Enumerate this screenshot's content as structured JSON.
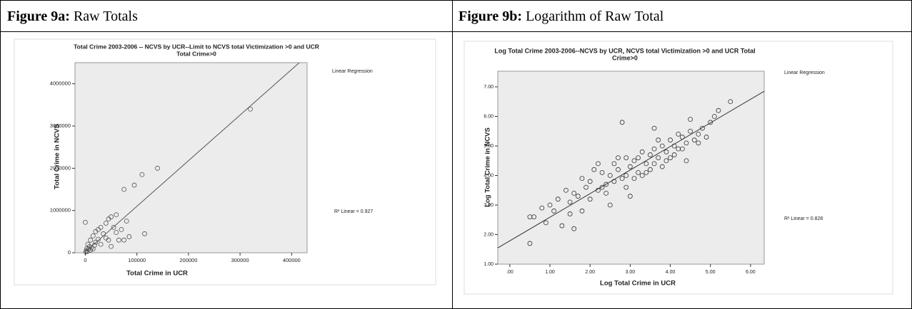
{
  "table": {
    "headers": [
      {
        "label": "Figure 9a:",
        "text": "Raw Totals"
      },
      {
        "label": "Figure 9b:",
        "text": "Logarithm of Raw Total"
      }
    ]
  },
  "chart_data": [
    {
      "type": "scatter",
      "title": [
        "Total Crime 2003-2006 -- NCVS by UCR--Limit to NCVS total Victimization >0 and UCR",
        "Total Crime>0"
      ],
      "x_label": "Total Crime in UCR",
      "y_label": "Total Crime in NCVS",
      "legend_title": "Linear Regression",
      "annotation": "R² Linear = 0.927",
      "xlim": [
        -20000,
        430000
      ],
      "ylim": [
        0,
        4500000
      ],
      "xticks": [
        0,
        100000,
        200000,
        300000,
        400000
      ],
      "yticks": [
        0,
        1000000,
        2000000,
        3000000,
        4000000
      ],
      "x": [
        320000,
        140000,
        110000,
        95000,
        75000,
        60000,
        50000,
        45000,
        40000,
        0,
        80000,
        70000,
        115000,
        60000,
        85000,
        75000,
        30000,
        25000,
        20000,
        35000,
        15000,
        10000,
        20000,
        5000,
        8000,
        3000,
        12000,
        18000,
        25000,
        40000,
        2000,
        6000,
        10000,
        15000,
        30000,
        45000,
        50000,
        1000,
        4000,
        55000,
        65000
      ],
      "y": [
        3400000,
        2000000,
        1850000,
        1600000,
        1500000,
        900000,
        850000,
        800000,
        700000,
        720000,
        750000,
        550000,
        450000,
        480000,
        380000,
        300000,
        600000,
        550000,
        500000,
        450000,
        400000,
        300000,
        250000,
        200000,
        150000,
        100000,
        120000,
        180000,
        320000,
        350000,
        50000,
        80000,
        60000,
        90000,
        200000,
        300000,
        150000,
        20000,
        30000,
        600000,
        300000
      ],
      "fit_line": {
        "x": [
          0,
          415000
        ],
        "y": [
          20000,
          4500000
        ]
      },
      "color": "#555555"
    },
    {
      "type": "scatter",
      "title": [
        "Log Total Crime 2003-2006--NCVS by UCR, NCVS total Victimization >0 and UCR Total",
        "Crime>0"
      ],
      "x_label": "Log Total Crime in UCR",
      "y_label": "Log Total Crime in NCVS",
      "legend_title": "Linear Regression",
      "annotation": "R² Linear = 0.828",
      "xlim": [
        -0.3,
        6.34
      ],
      "ylim": [
        1.0,
        7.53
      ],
      "xticks": [
        {
          "value": 0,
          "label": ".00"
        },
        {
          "value": 1,
          "label": "1.00"
        },
        {
          "value": 2,
          "label": "2.00"
        },
        {
          "value": 3,
          "label": "3.00"
        },
        {
          "value": 4,
          "label": "4.00"
        },
        {
          "value": 5,
          "label": "5.00"
        },
        {
          "value": 6,
          "label": "6.00"
        }
      ],
      "yticks": [
        {
          "value": 1,
          "label": "1.00"
        },
        {
          "value": 2,
          "label": "2.00"
        },
        {
          "value": 3,
          "label": "3.00"
        },
        {
          "value": 4,
          "label": "4.00"
        },
        {
          "value": 5,
          "label": "5.00"
        },
        {
          "value": 6,
          "label": "6.00"
        },
        {
          "value": 7,
          "label": "7.00"
        }
      ],
      "x": [
        0.5,
        0.6,
        0.8,
        0.9,
        1.0,
        1.1,
        1.2,
        1.3,
        1.4,
        1.5,
        1.6,
        1.7,
        1.8,
        1.9,
        2.0,
        2.1,
        2.2,
        2.3,
        2.4,
        2.5,
        2.6,
        2.7,
        2.8,
        2.9,
        3.0,
        3.1,
        3.2,
        3.3,
        3.4,
        3.5,
        3.6,
        3.7,
        3.8,
        3.9,
        4.0,
        4.1,
        4.2,
        4.3,
        4.4,
        4.5,
        4.6,
        4.7,
        4.8,
        4.9,
        5.0,
        5.1,
        5.2,
        5.5,
        2.0,
        2.2,
        2.5,
        2.7,
        2.9,
        3.1,
        3.3,
        3.5,
        3.7,
        3.9,
        4.1,
        4.3,
        4.5,
        4.7,
        2.8,
        3.0,
        3.2,
        3.4,
        3.6,
        3.8,
        4.0,
        4.2,
        2.4,
        2.6,
        1.6,
        1.8,
        2.9,
        3.6,
        4.4,
        0.5,
        1.5,
        2.3
      ],
      "y": [
        1.7,
        2.6,
        2.9,
        2.4,
        3.0,
        2.8,
        3.2,
        2.3,
        3.5,
        3.1,
        3.4,
        3.3,
        3.9,
        3.6,
        3.8,
        4.2,
        3.5,
        4.1,
        3.7,
        4.0,
        4.4,
        4.2,
        3.9,
        4.6,
        4.3,
        4.5,
        4.1,
        4.8,
        4.4,
        4.7,
        4.9,
        4.6,
        5.0,
        4.8,
        5.2,
        5.0,
        4.9,
        5.3,
        5.1,
        5.5,
        5.2,
        5.4,
        5.6,
        5.3,
        5.8,
        6.0,
        6.2,
        6.5,
        3.2,
        4.4,
        3.0,
        4.6,
        3.6,
        3.9,
        4.0,
        4.2,
        5.2,
        4.5,
        4.7,
        4.9,
        5.9,
        5.1,
        5.8,
        3.3,
        4.6,
        4.1,
        4.4,
        4.3,
        4.6,
        5.4,
        3.4,
        3.8,
        2.2,
        2.8,
        4.0,
        5.6,
        4.5,
        2.6,
        2.7,
        3.6
      ],
      "fit_line": {
        "x": [
          -0.3,
          6.34
        ],
        "y": [
          1.55,
          6.85
        ]
      },
      "color": "#333333"
    }
  ]
}
